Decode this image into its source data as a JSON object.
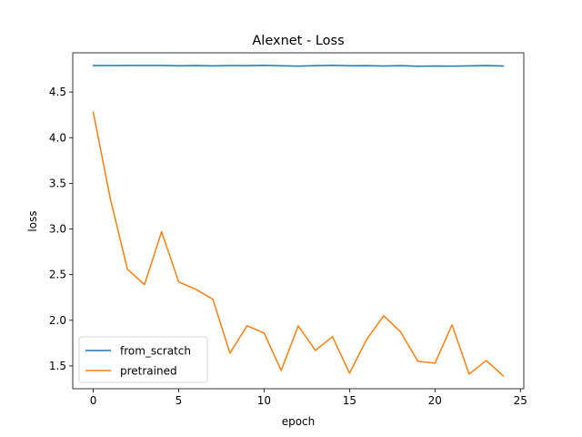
{
  "chart_data": {
    "type": "line",
    "title": "Alexnet - Loss",
    "xlabel": "epoch",
    "ylabel": "loss",
    "xlim": [
      -1.2,
      25.2
    ],
    "ylim": [
      1.25,
      4.93
    ],
    "x_ticks": [
      0,
      5,
      10,
      15,
      20,
      25
    ],
    "y_ticks": [
      1.5,
      2.0,
      2.5,
      3.0,
      3.5,
      4.0,
      4.5
    ],
    "x_tick_labels": [
      "0",
      "5",
      "10",
      "15",
      "20",
      "25"
    ],
    "y_tick_labels": [
      "1.5",
      "2.0",
      "2.5",
      "3.0",
      "3.5",
      "4.0",
      "4.5"
    ],
    "x": [
      0,
      1,
      2,
      3,
      4,
      5,
      6,
      7,
      8,
      9,
      10,
      11,
      12,
      13,
      14,
      15,
      16,
      17,
      18,
      19,
      20,
      21,
      22,
      23,
      24
    ],
    "series": [
      {
        "name": "from_scratch",
        "color": "#1f77b4",
        "values": [
          4.79,
          4.79,
          4.792,
          4.792,
          4.792,
          4.788,
          4.791,
          4.787,
          4.791,
          4.789,
          4.793,
          4.788,
          4.784,
          4.789,
          4.793,
          4.788,
          4.789,
          4.785,
          4.789,
          4.783,
          4.786,
          4.784,
          4.787,
          4.79,
          4.786
        ]
      },
      {
        "name": "pretrained",
        "color": "#ff7f0e",
        "values": [
          4.28,
          3.33,
          2.56,
          2.39,
          2.97,
          2.42,
          2.34,
          2.23,
          1.64,
          1.94,
          1.86,
          1.45,
          1.94,
          1.67,
          1.82,
          1.42,
          1.79,
          2.05,
          1.87,
          1.55,
          1.53,
          1.95,
          1.41,
          1.56,
          1.39
        ]
      }
    ],
    "grid": false,
    "legend_position": "lower-left"
  }
}
